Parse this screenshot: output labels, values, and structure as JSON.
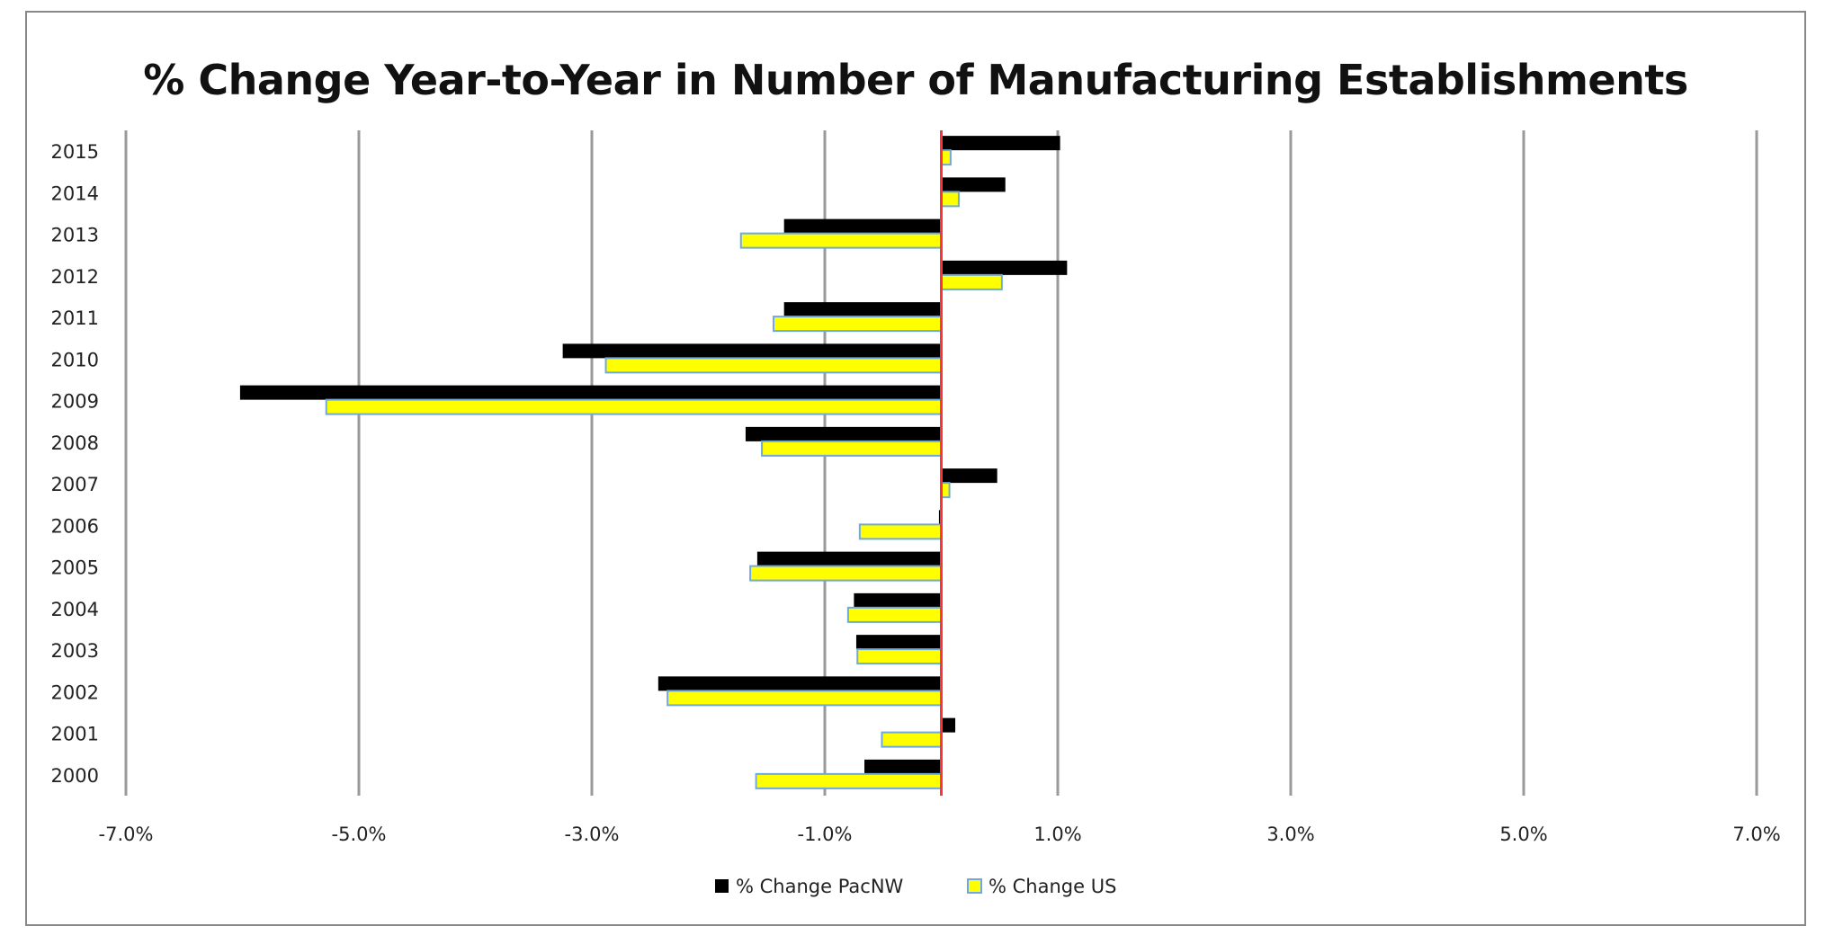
{
  "chart_data": {
    "type": "bar",
    "orientation": "horizontal",
    "title": "% Change Year-to-Year in Number of Manufacturing Establishments",
    "xlabel": "",
    "ylabel": "",
    "xlim": [
      -7.0,
      7.0
    ],
    "x_ticks": [
      -7.0,
      -5.0,
      -3.0,
      -1.0,
      1.0,
      3.0,
      5.0,
      7.0
    ],
    "x_tick_labels": [
      "-7.0%",
      "-5.0%",
      "-3.0%",
      "-1.0%",
      "1.0%",
      "3.0%",
      "5.0%",
      "7.0%"
    ],
    "categories": [
      "2015",
      "2014",
      "2013",
      "2012",
      "2011",
      "2010",
      "2009",
      "2008",
      "2007",
      "2006",
      "2005",
      "2004",
      "2003",
      "2002",
      "2001",
      "2000"
    ],
    "series": [
      {
        "name": "% Change PacNW",
        "color": "#000000",
        "values": [
          1.02,
          0.55,
          -1.35,
          1.08,
          -1.35,
          -3.25,
          -6.02,
          -1.68,
          0.48,
          -0.02,
          -1.58,
          -0.75,
          -0.73,
          -2.43,
          0.12,
          -0.66
        ]
      },
      {
        "name": "% Change US",
        "color": "#ffff00",
        "border": "#6fa8dc",
        "values": [
          0.08,
          0.15,
          -1.72,
          0.52,
          -1.44,
          -2.88,
          -5.28,
          -1.54,
          0.07,
          -0.7,
          -1.64,
          -0.8,
          -0.72,
          -2.35,
          -0.51,
          -1.59
        ]
      }
    ],
    "zero_line_color": "#ff3333",
    "grid": true,
    "legend_position": "bottom-center"
  }
}
